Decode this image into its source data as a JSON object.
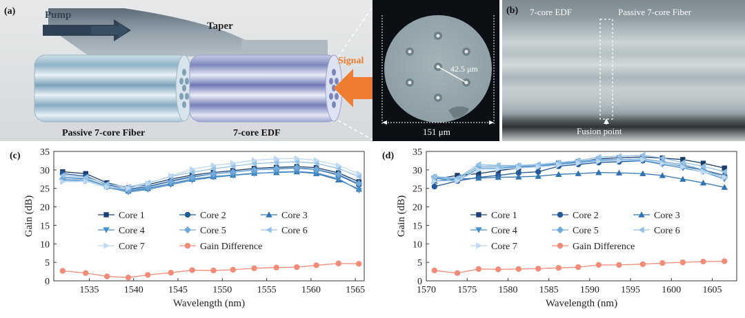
{
  "panel_a": {
    "label": "(a)",
    "pump": "Pump",
    "taper": "Taper",
    "signal": "Signal",
    "passive_fiber": "Passive 7-core Fiber",
    "edf": "7-core EDF",
    "pitch": "42.5 μm",
    "diameter": "151 μm"
  },
  "panel_b": {
    "label": "(b)",
    "edf": "7-core EDF",
    "passive_fiber": "Passive 7-core Fiber",
    "fusion": "Fusion point"
  },
  "colors": {
    "core1": "#1b3d6e",
    "core2": "#24599a",
    "core3": "#2f73b3",
    "core4": "#4a8ecb",
    "core5": "#6fa9d9",
    "core6": "#96c1e6",
    "core7": "#bcd8f2",
    "gain_diff": "#f28b78",
    "signal_arrow": "#ee7d31"
  },
  "chart_data": [
    {
      "type": "line",
      "panel": "(c)",
      "xlabel": "Wavelength (nm)",
      "ylabel": "Gain (dB)",
      "xlim": [
        1531,
        1566
      ],
      "ylim": [
        0,
        35
      ],
      "xticks": [
        1535,
        1540,
        1545,
        1550,
        1555,
        1560,
        1565
      ],
      "yticks": [
        0,
        5,
        10,
        15,
        20,
        25,
        30,
        35
      ],
      "x": [
        1532,
        1534.6,
        1537,
        1539.4,
        1541.6,
        1544.2,
        1546.6,
        1549,
        1551.2,
        1553.6,
        1556.1,
        1558.4,
        1560.6,
        1563.1,
        1565.4
      ],
      "series": [
        {
          "name": "Core 1",
          "marker": "square",
          "values": [
            29.5,
            29.0,
            26.5,
            25.2,
            26.0,
            27.5,
            28.6,
            29.3,
            29.8,
            30.4,
            30.7,
            30.9,
            30.6,
            29.2,
            26.8
          ]
        },
        {
          "name": "Core 2",
          "marker": "circle",
          "values": [
            29.0,
            28.3,
            26.0,
            24.8,
            25.5,
            27.0,
            28.2,
            28.9,
            29.4,
            30.0,
            30.3,
            30.5,
            30.1,
            28.6,
            26.0
          ]
        },
        {
          "name": "Core 3",
          "marker": "triangle-up",
          "values": [
            28.0,
            27.6,
            25.6,
            24.3,
            25.0,
            26.3,
            27.5,
            28.2,
            28.6,
            29.1,
            29.3,
            29.5,
            29.0,
            27.3,
            24.8
          ]
        },
        {
          "name": "Core 4",
          "marker": "triangle-down",
          "values": [
            27.2,
            27.0,
            25.3,
            24.0,
            24.7,
            26.0,
            27.2,
            28.0,
            28.5,
            29.0,
            29.4,
            29.6,
            29.2,
            27.6,
            24.5
          ]
        },
        {
          "name": "Core 5",
          "marker": "diamond",
          "values": [
            27.5,
            27.4,
            25.5,
            24.5,
            25.3,
            26.8,
            28.0,
            28.9,
            29.4,
            30.0,
            30.4,
            30.6,
            30.2,
            28.8,
            26.3
          ]
        },
        {
          "name": "Core 6",
          "marker": "triangle-left",
          "values": [
            28.5,
            28.0,
            26.2,
            25.4,
            26.5,
            28.2,
            29.4,
            30.3,
            31.0,
            31.7,
            32.0,
            32.2,
            31.8,
            30.4,
            28.2
          ]
        },
        {
          "name": "Core 7",
          "marker": "triangle-right",
          "values": [
            26.8,
            26.9,
            25.4,
            25.0,
            26.3,
            28.4,
            30.2,
            31.2,
            31.8,
            32.6,
            33.0,
            33.1,
            32.6,
            31.2,
            29.0
          ]
        },
        {
          "name": "Gain Difference",
          "marker": "circle",
          "values": [
            2.7,
            2.1,
            1.2,
            0.9,
            1.6,
            2.2,
            2.9,
            2.8,
            3.0,
            3.4,
            3.6,
            3.7,
            4.2,
            4.7,
            4.6
          ]
        }
      ]
    },
    {
      "type": "line",
      "panel": "(d)",
      "xlabel": "Wavelength (nm)",
      "ylabel": "Gain (dB)",
      "xlim": [
        1570,
        1608
      ],
      "ylim": [
        0,
        35
      ],
      "xticks": [
        1570,
        1575,
        1580,
        1585,
        1590,
        1595,
        1600,
        1605
      ],
      "yticks": [
        0,
        5,
        10,
        15,
        20,
        25,
        30,
        35
      ],
      "x": [
        1571,
        1573.8,
        1576.4,
        1578.8,
        1581.3,
        1583.7,
        1586.2,
        1588.6,
        1591.1,
        1593.6,
        1596.5,
        1598.9,
        1601.4,
        1603.9,
        1606.5
      ],
      "series": [
        {
          "name": "Core 1",
          "marker": "square",
          "values": [
            27.5,
            28.5,
            29.0,
            29.8,
            30.5,
            31.0,
            31.8,
            32.2,
            33.0,
            33.3,
            33.5,
            33.2,
            32.8,
            31.8,
            30.5
          ]
        },
        {
          "name": "Core 2",
          "marker": "circle",
          "values": [
            25.5,
            27.0,
            28.0,
            28.5,
            29.2,
            29.5,
            31.0,
            31.5,
            32.0,
            32.2,
            32.5,
            31.8,
            31.0,
            30.0,
            28.5
          ]
        },
        {
          "name": "Core 3",
          "marker": "triangle-up",
          "values": [
            27.0,
            27.5,
            27.8,
            28.0,
            28.1,
            28.3,
            28.8,
            29.0,
            29.3,
            29.2,
            29.0,
            28.5,
            27.5,
            26.5,
            25.3
          ]
        },
        {
          "name": "Core 4",
          "marker": "triangle-down",
          "values": [
            27.8,
            27.0,
            30.5,
            30.5,
            30.8,
            31.0,
            31.5,
            32.0,
            32.5,
            32.5,
            32.5,
            31.5,
            30.5,
            29.5,
            27.5
          ]
        },
        {
          "name": "Core 5",
          "marker": "diamond",
          "values": [
            28.0,
            27.5,
            31.0,
            31.0,
            31.0,
            31.2,
            31.8,
            32.3,
            32.8,
            32.8,
            33.0,
            32.2,
            31.5,
            30.0,
            28.0
          ]
        },
        {
          "name": "Core 6",
          "marker": "triangle-left",
          "values": [
            28.2,
            27.8,
            31.5,
            31.2,
            31.2,
            31.5,
            32.0,
            32.5,
            33.5,
            33.7,
            34.0,
            33.2,
            32.0,
            31.0,
            29.5
          ]
        },
        {
          "name": "Core 7",
          "marker": "triangle-right",
          "values": [
            27.0,
            27.0,
            30.0,
            30.2,
            30.5,
            30.8,
            31.3,
            31.8,
            32.3,
            32.5,
            32.8,
            31.8,
            30.8,
            29.5,
            28.0
          ]
        },
        {
          "name": "Gain Difference",
          "marker": "circle",
          "values": [
            2.8,
            2.1,
            3.2,
            3.1,
            3.2,
            3.3,
            3.5,
            3.7,
            4.3,
            4.3,
            4.5,
            4.8,
            5.0,
            5.2,
            5.3
          ]
        }
      ]
    }
  ]
}
